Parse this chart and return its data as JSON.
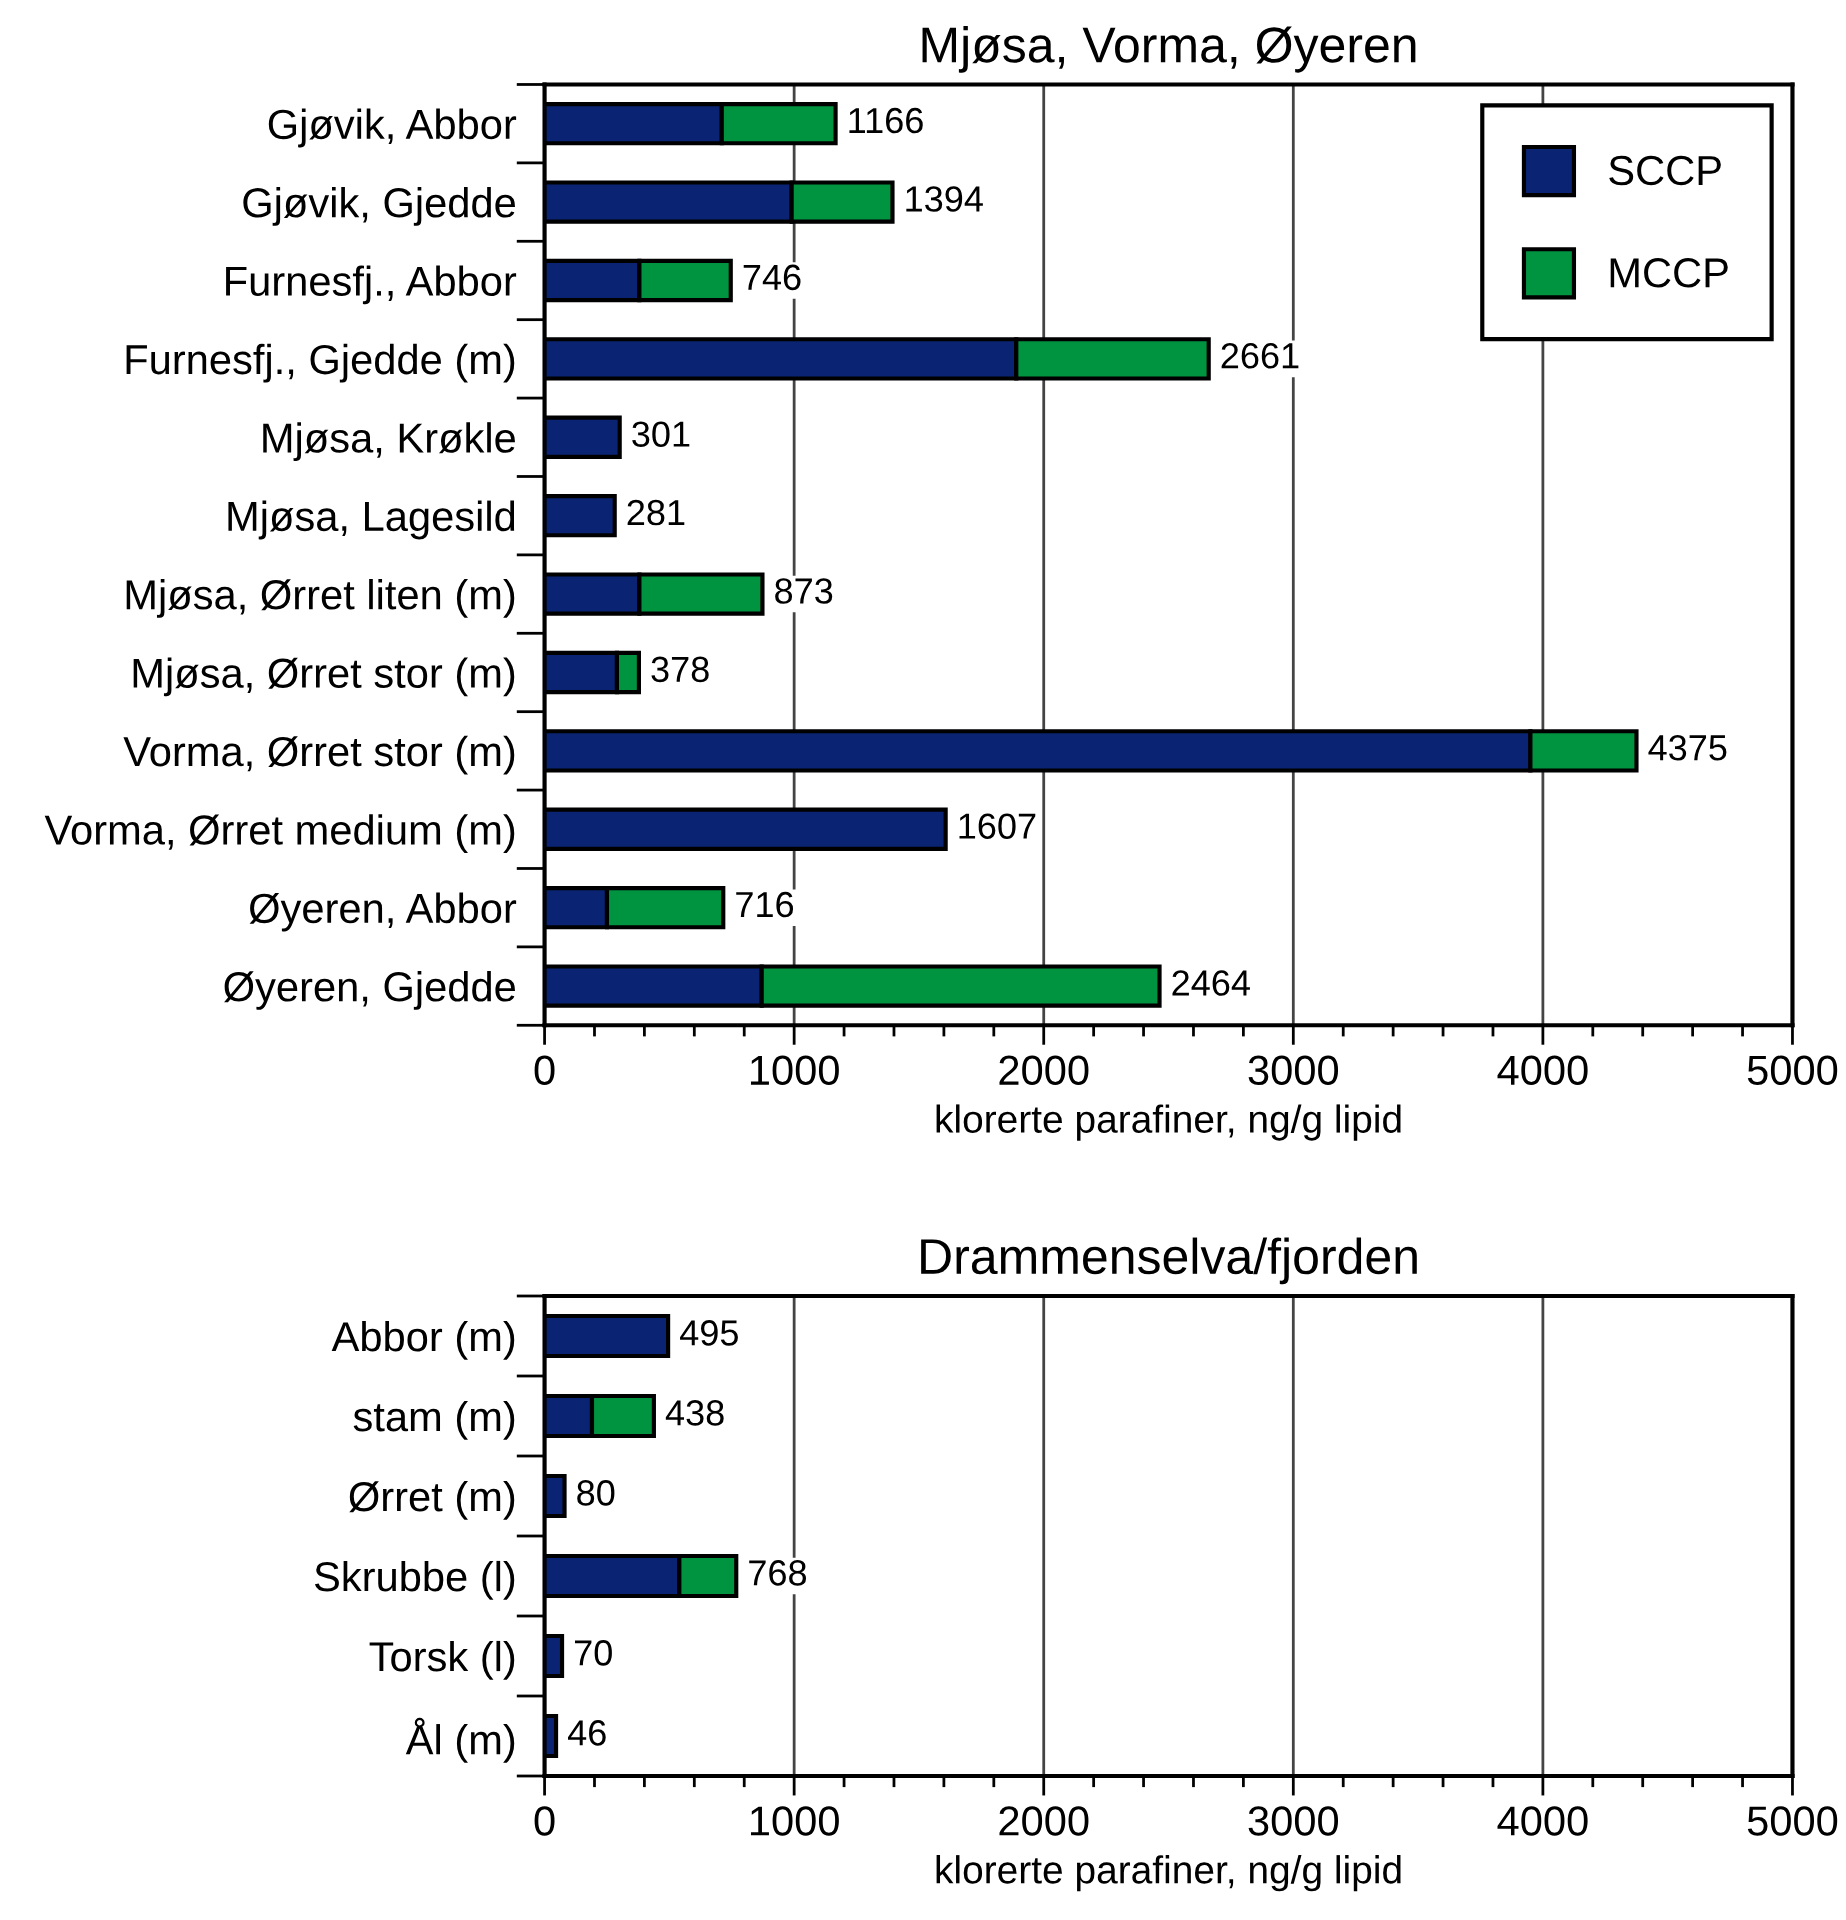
{
  "chart_data": [
    {
      "type": "bar",
      "orientation": "horizontal",
      "stacked": true,
      "title": "Mjøsa, Vorma, Øyeren",
      "xlabel": "klorerte parafiner, ng/g lipid",
      "categories": [
        "Gjøvik, Abbor",
        "Gjøvik, Gjedde",
        "Furnesfj., Abbor",
        "Furnesfj., Gjedde (m)",
        "Mjøsa, Krøkle",
        "Mjøsa, Lagesild",
        "Mjøsa, Ørret liten (m)",
        "Mjøsa, Ørret stor (m)",
        "Vorma, Ørret stor (m)",
        "Vorma, Ørret medium (m)",
        "Øyeren, Abbor",
        "Øyeren, Gjedde"
      ],
      "series": [
        {
          "name": "SCCP",
          "color": "#0a2473",
          "values": [
            710,
            990,
            380,
            1890,
            301,
            281,
            380,
            290,
            3950,
            1607,
            250,
            870
          ]
        },
        {
          "name": "MCCP",
          "color": "#009340",
          "values": [
            456,
            404,
            366,
            771,
            null,
            null,
            493,
            88,
            425,
            null,
            466,
            1594
          ]
        }
      ],
      "totals": [
        "1166",
        "1394",
        "746",
        "2661",
        "301",
        "281",
        "873",
        "378",
        "4375",
        "1607",
        "716",
        "2464"
      ],
      "xlim": [
        0,
        5000
      ],
      "xticks": [
        0,
        {
          "value": 200,
          "label": null
        },
        {
          "value": 400,
          "label": null
        },
        {
          "value": 600,
          "label": null
        },
        {
          "value": 800,
          "label": null
        },
        1000,
        {
          "value": 1200,
          "label": null
        },
        {
          "value": 1400,
          "label": null
        },
        {
          "value": 1600,
          "label": null
        },
        {
          "value": 1800,
          "label": null
        },
        2000,
        {
          "value": 2200,
          "label": null
        },
        {
          "value": 2400,
          "label": null
        },
        {
          "value": 2600,
          "label": null
        },
        {
          "value": 2800,
          "label": null
        },
        3000,
        {
          "value": 3200,
          "label": null
        },
        {
          "value": 3400,
          "label": null
        },
        {
          "value": 3600,
          "label": null
        },
        {
          "value": 3800,
          "label": null
        },
        4000,
        {
          "value": 4200,
          "label": null
        },
        {
          "value": 4400,
          "label": null
        },
        {
          "value": 4600,
          "label": null
        },
        {
          "value": 4800,
          "label": null
        },
        5000
      ],
      "grid": "x",
      "legend": "top right"
    },
    {
      "type": "bar",
      "orientation": "horizontal",
      "stacked": true,
      "title": "Drammenselva/fjorden",
      "xlabel": "klorerte parafiner, ng/g lipid",
      "categories": [
        "Abbor (m)",
        "stam (m)",
        "Ørret (m)",
        "Skrubbe (l)",
        "Torsk (l)",
        "Ål (m)"
      ],
      "series": [
        {
          "color": "#0a2473",
          "values": [
            495,
            190,
            80,
            540,
            70,
            46
          ]
        },
        {
          "color": "#009340",
          "values": [
            null,
            248,
            null,
            228,
            null,
            null
          ]
        }
      ],
      "totals": [
        "495",
        "438",
        "80",
        "768",
        "70",
        "46"
      ],
      "xlim": [
        0,
        5000
      ],
      "xticks": [
        0,
        {
          "value": 200,
          "label": null
        },
        {
          "value": 400,
          "label": null
        },
        {
          "value": 600,
          "label": null
        },
        {
          "value": 800,
          "label": null
        },
        1000,
        {
          "value": 1200,
          "label": null
        },
        {
          "value": 1400,
          "label": null
        },
        {
          "value": 1600,
          "label": null
        },
        {
          "value": 1800,
          "label": null
        },
        2000,
        {
          "value": 2200,
          "label": null
        },
        {
          "value": 2400,
          "label": null
        },
        {
          "value": 2600,
          "label": null
        },
        {
          "value": 2800,
          "label": null
        },
        3000,
        {
          "value": 3200,
          "label": null
        },
        {
          "value": 3400,
          "label": null
        },
        {
          "value": 3600,
          "label": null
        },
        {
          "value": 3800,
          "label": null
        },
        4000,
        {
          "value": 4200,
          "label": null
        },
        {
          "value": 4400,
          "label": null
        },
        {
          "value": 4600,
          "label": null
        },
        {
          "value": 4800,
          "label": null
        },
        5000
      ],
      "grid": "x"
    }
  ]
}
